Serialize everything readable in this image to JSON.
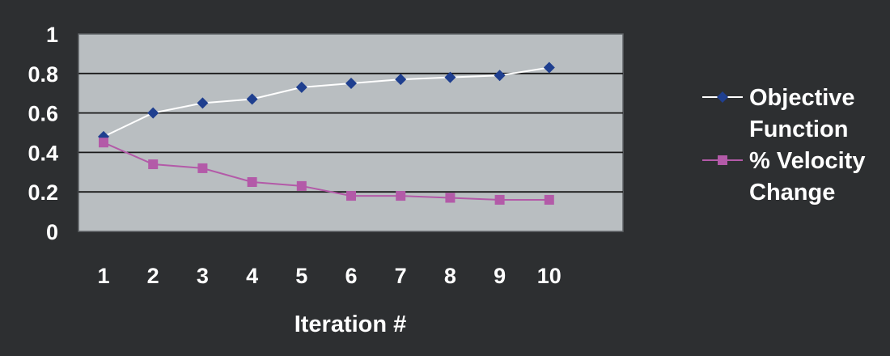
{
  "chart_data": {
    "type": "line",
    "x": [
      1,
      2,
      3,
      4,
      5,
      6,
      7,
      8,
      9,
      10
    ],
    "xlabel": "Iteration #",
    "ylabel": "",
    "title": "",
    "ylim": [
      0,
      1
    ],
    "yticks": [
      "0",
      "0.2",
      "0.4",
      "0.6",
      "0.8",
      "1"
    ],
    "xticks": [
      "1",
      "2",
      "3",
      "4",
      "5",
      "6",
      "7",
      "8",
      "9",
      "10"
    ],
    "grid": true,
    "legend_position": "right",
    "plot_background": "#b9bec1",
    "series": [
      {
        "name_lines": [
          "Objective",
          "Function"
        ],
        "values": [
          0.48,
          0.6,
          0.65,
          0.67,
          0.73,
          0.75,
          0.77,
          0.78,
          0.79,
          0.83
        ],
        "line_color": "#ffffff",
        "marker": "diamond",
        "marker_color": "#1f3f8f"
      },
      {
        "name_lines": [
          "% Velocity",
          "Change"
        ],
        "values": [
          0.45,
          0.34,
          0.32,
          0.25,
          0.23,
          0.18,
          0.18,
          0.17,
          0.16,
          0.16
        ],
        "line_color": "#b35aa8",
        "marker": "square",
        "marker_color": "#b35aa8"
      }
    ]
  }
}
